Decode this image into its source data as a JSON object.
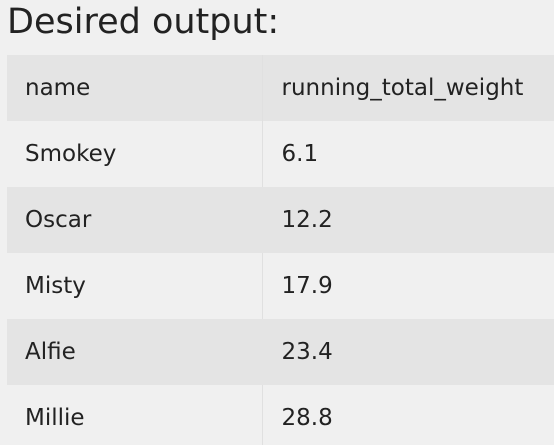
{
  "heading": "Desired output:",
  "table": {
    "columns": [
      "name",
      "running_total_weight"
    ],
    "rows": [
      [
        "Smokey",
        "6.1"
      ],
      [
        "Oscar",
        "12.2"
      ],
      [
        "Misty",
        "17.9"
      ],
      [
        "Alfie",
        "23.4"
      ],
      [
        "Millie",
        "28.8"
      ]
    ]
  }
}
